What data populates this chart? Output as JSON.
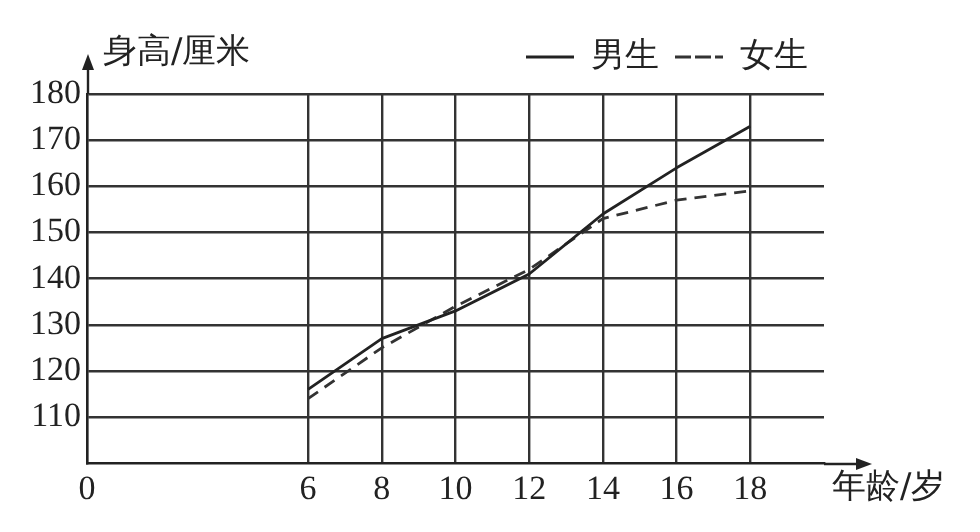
{
  "chart_data": {
    "type": "line",
    "xlabel": "年龄/岁",
    "ylabel": "身高/厘米",
    "x": [
      6,
      8,
      10,
      12,
      14,
      16,
      18
    ],
    "series": [
      {
        "name": "男生",
        "color": "#222222",
        "line_style": "solid",
        "values": [
          116,
          127,
          133,
          141,
          154,
          164,
          173
        ]
      },
      {
        "name": "女生",
        "color": "#333333",
        "line_style": "dashed",
        "values": [
          114,
          125,
          134,
          142,
          153,
          157,
          159
        ]
      }
    ],
    "xlim": [
      0,
      20
    ],
    "xticks": [
      0,
      6,
      8,
      10,
      12,
      14,
      16,
      18
    ],
    "ylim": [
      100,
      180
    ],
    "yticks": [
      110,
      120,
      130,
      140,
      150,
      160,
      170,
      180
    ],
    "grid": true,
    "legend": "top right",
    "marker": "none"
  }
}
